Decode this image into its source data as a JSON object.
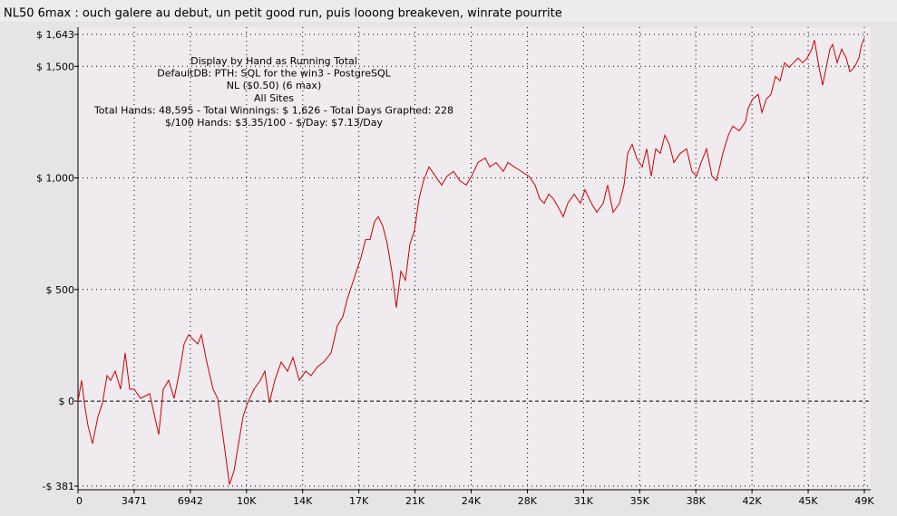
{
  "chart_data": {
    "type": "line",
    "title": "NL50 6max : ouch galere au debut, un petit good run, puis looong breakeven, winrate pourrite",
    "annotations": [
      "Display by Hand as Running Total",
      "DefaultDB: PTH: SQL for the win3 - PostgreSQL",
      "NL ($0.50) (6 max)",
      "All Sites",
      "Total Hands: 48,595 - Total Winnings: $ 1,626 - Total Days Graphed: 228",
      "$/100 Hands: $3.35/100 - $/Day: $7.13/Day"
    ],
    "color": "#cc0000",
    "grid": true,
    "xlim": [
      0,
      48595
    ],
    "ylim": [
      -381,
      1643
    ],
    "xticks": [
      0,
      3471,
      6942,
      {
        "value": 10413,
        "label": "10K"
      },
      {
        "value": 13884,
        "label": "14K"
      },
      {
        "value": 17355,
        "label": "17K"
      },
      {
        "value": 20826,
        "label": "21K"
      },
      {
        "value": 24297,
        "label": "24K"
      },
      {
        "value": 27768,
        "label": "28K"
      },
      {
        "value": 31239,
        "label": "31K"
      },
      {
        "value": 34710,
        "label": "35K"
      },
      {
        "value": 38181,
        "label": "38K"
      },
      {
        "value": 41652,
        "label": "42K"
      },
      {
        "value": 45123,
        "label": "45K"
      },
      {
        "value": 48594,
        "label": "49K"
      }
    ],
    "yticks": [
      {
        "value": -381,
        "label": "-$ 381"
      },
      {
        "value": 0,
        "label": "$ 0"
      },
      {
        "value": 500,
        "label": "$ 500"
      },
      {
        "value": 1000,
        "label": "$ 1,000"
      },
      {
        "value": 1500,
        "label": "$ 1,500"
      },
      {
        "value": 1643,
        "label": "$ 1,643"
      }
    ],
    "x": [
      0,
      224,
      392,
      617,
      897,
      1233,
      1513,
      1794,
      2018,
      2298,
      2634,
      2915,
      3195,
      3475,
      3867,
      4428,
      4988,
      5269,
      5605,
      5941,
      6278,
      6558,
      6838,
      7118,
      7399,
      7623,
      7959,
      8351,
      8632,
      9024,
      9360,
      9641,
      9921,
      10201,
      10481,
      10874,
      11266,
      11546,
      11827,
      12163,
      12555,
      12948,
      13284,
      13676,
      14069,
      14405,
      14797,
      15190,
      15638,
      16030,
      16367,
      16647,
      16927,
      17208,
      17488,
      17768,
      18048,
      18329,
      18553,
      18833,
      19113,
      19393,
      19674,
      19954,
      20234,
      20514,
      20795,
      21075,
      21355,
      21691,
      22084,
      22476,
      22812,
      23205,
      23597,
      23989,
      24326,
      24718,
      25166,
      25447,
      25839,
      26287,
      26568,
      26960,
      27405,
      27857,
      28249,
      28529,
      28810,
      29090,
      29370,
      29707,
      29987,
      30267,
      30659,
      31052,
      31332,
      31724,
      32061,
      32453,
      32733,
      33070,
      33462,
      33742,
      33967,
      34247,
      34527,
      34864,
      35144,
      35424,
      35704,
      35985,
      36265,
      36545,
      36825,
      37217,
      37610,
      37946,
      38226,
      38506,
      38843,
      39179,
      39459,
      39852,
      40188,
      40468,
      40860,
      41253,
      41421,
      41701,
      42038,
      42262,
      42542,
      42822,
      43102,
      43383,
      43663,
      43943,
      44223,
      44503,
      44784,
      45064,
      45344,
      45512,
      45793,
      46017,
      46297,
      46465,
      46634,
      46914,
      47194,
      47474,
      47698,
      47979,
      48259,
      48427,
      48595
    ],
    "values": [
      0,
      93,
      -8,
      -110,
      -191,
      -69,
      -8,
      114,
      93,
      134,
      53,
      216,
      53,
      53,
      12,
      33,
      -150,
      53,
      93,
      12,
      134,
      256,
      297,
      276,
      256,
      297,
      175,
      53,
      12,
      -191,
      -374,
      -313,
      -191,
      -69,
      -8,
      53,
      93,
      134,
      -8,
      93,
      175,
      134,
      195,
      93,
      134,
      114,
      154,
      175,
      216,
      338,
      378,
      459,
      520,
      582,
      642,
      724,
      724,
      805,
      826,
      785,
      704,
      582,
      419,
      582,
      541,
      704,
      764,
      907,
      988,
      1049,
      1008,
      968,
      1008,
      1029,
      988,
      968,
      1008,
      1069,
      1089,
      1049,
      1069,
      1029,
      1069,
      1049,
      1029,
      1008,
      968,
      907,
      886,
      927,
      907,
      866,
      826,
      886,
      927,
      886,
      947,
      886,
      846,
      886,
      968,
      846,
      886,
      968,
      1110,
      1150,
      1089,
      1049,
      1130,
      1008,
      1130,
      1110,
      1191,
      1150,
      1069,
      1110,
      1130,
      1029,
      1008,
      1069,
      1130,
      1008,
      988,
      1110,
      1191,
      1232,
      1211,
      1252,
      1313,
      1354,
      1374,
      1293,
      1354,
      1374,
      1455,
      1435,
      1516,
      1496,
      1516,
      1537,
      1516,
      1537,
      1577,
      1618,
      1496,
      1415,
      1516,
      1577,
      1598,
      1516,
      1577,
      1537,
      1476,
      1496,
      1537,
      1598,
      1626
    ]
  }
}
